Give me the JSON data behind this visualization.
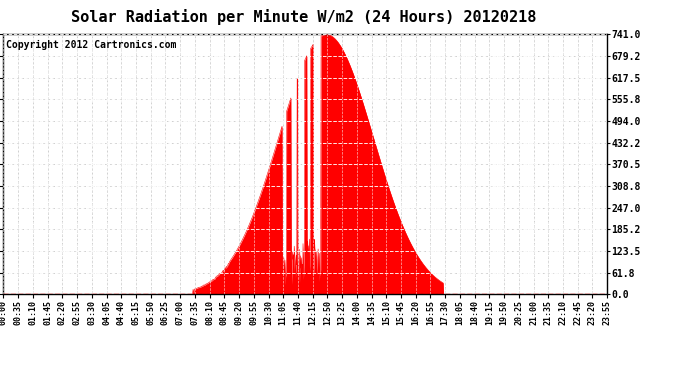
{
  "title": "Solar Radiation per Minute W/m2 (24 Hours) 20120218",
  "copyright_text": "Copyright 2012 Cartronics.com",
  "y_ticks": [
    0.0,
    61.8,
    123.5,
    185.2,
    247.0,
    308.8,
    370.5,
    432.2,
    494.0,
    555.8,
    617.5,
    679.2,
    741.0
  ],
  "y_max": 741.0,
  "y_min": 0.0,
  "bg_color": "#ffffff",
  "plot_bg_color": "#ffffff",
  "fill_color": "#ff0000",
  "line_color": "#ff0000",
  "grid_color": "#c8c8c8",
  "title_fontsize": 11,
  "copyright_fontsize": 7,
  "x_tick_labels": [
    "00:00",
    "00:35",
    "01:10",
    "01:45",
    "02:20",
    "02:55",
    "03:30",
    "04:05",
    "04:40",
    "05:15",
    "05:50",
    "06:25",
    "07:00",
    "07:35",
    "08:10",
    "08:45",
    "09:20",
    "09:55",
    "10:30",
    "11:05",
    "11:40",
    "12:15",
    "12:50",
    "13:25",
    "14:00",
    "14:35",
    "15:10",
    "15:45",
    "16:20",
    "16:55",
    "17:30",
    "18:05",
    "18:40",
    "19:15",
    "19:50",
    "20:25",
    "21:00",
    "21:35",
    "22:10",
    "22:45",
    "23:20",
    "23:55"
  ]
}
